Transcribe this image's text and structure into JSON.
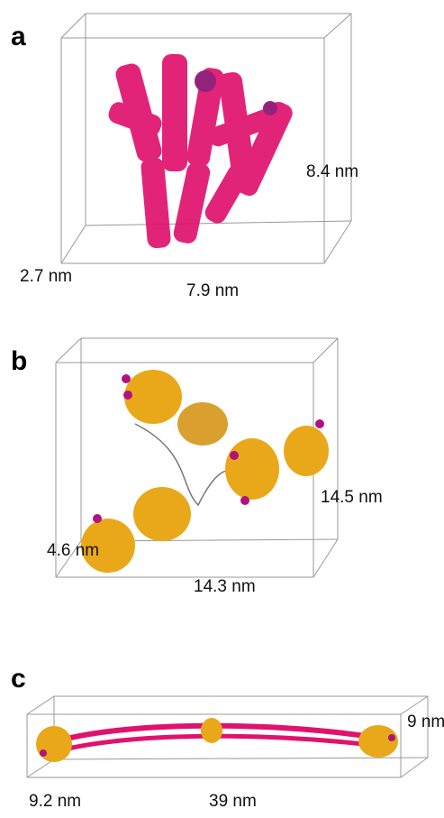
{
  "panels": [
    {
      "label": "a",
      "depth": "2.7 nm",
      "width": "7.9 nm",
      "height": "8.4 nm"
    },
    {
      "label": "b",
      "depth": "4.6 nm",
      "width": "14.3 nm",
      "height": "14.5 nm"
    },
    {
      "label": "c",
      "depth": "9.2 nm",
      "width": "39 nm",
      "height": "9 nm"
    }
  ]
}
